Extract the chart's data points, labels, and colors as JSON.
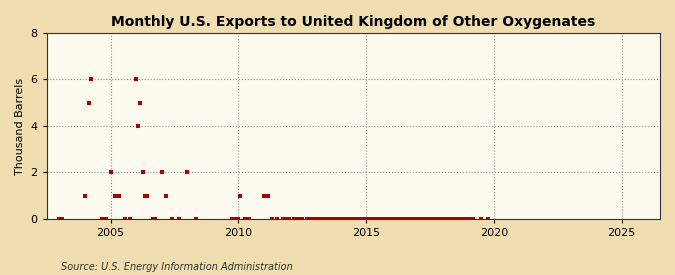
{
  "title": "Monthly U.S. Exports to United Kingdom of Other Oxygenates",
  "ylabel": "Thousand Barrels",
  "source": "Source: U.S. Energy Information Administration",
  "fig_bg_color": "#f0deb0",
  "plot_bg_color": "#fdfaf0",
  "marker_color": "#aa0000",
  "marker": "s",
  "marker_size": 7,
  "xlim_start": 2002.5,
  "xlim_end": 2026.5,
  "ylim": [
    0,
    8
  ],
  "yticks": [
    0,
    2,
    4,
    6,
    8
  ],
  "xticks": [
    2005,
    2010,
    2015,
    2020,
    2025
  ],
  "data_points": [
    [
      2003.0,
      0
    ],
    [
      2003.08,
      0
    ],
    [
      2004.0,
      1
    ],
    [
      2004.17,
      5
    ],
    [
      2004.25,
      6
    ],
    [
      2004.67,
      0
    ],
    [
      2004.83,
      0
    ],
    [
      2005.0,
      2
    ],
    [
      2005.17,
      1
    ],
    [
      2005.33,
      1
    ],
    [
      2005.58,
      0
    ],
    [
      2005.75,
      0
    ],
    [
      2006.0,
      6
    ],
    [
      2006.08,
      4
    ],
    [
      2006.17,
      5
    ],
    [
      2006.25,
      2
    ],
    [
      2006.33,
      1
    ],
    [
      2006.42,
      1
    ],
    [
      2006.67,
      0
    ],
    [
      2006.75,
      0
    ],
    [
      2007.0,
      2
    ],
    [
      2007.17,
      1
    ],
    [
      2007.42,
      0
    ],
    [
      2007.67,
      0
    ],
    [
      2008.0,
      2
    ],
    [
      2008.33,
      0
    ],
    [
      2009.75,
      0
    ],
    [
      2009.83,
      0
    ],
    [
      2010.0,
      0
    ],
    [
      2010.08,
      1
    ],
    [
      2010.25,
      0
    ],
    [
      2010.42,
      0
    ],
    [
      2011.0,
      1
    ],
    [
      2011.17,
      1
    ],
    [
      2011.33,
      0
    ],
    [
      2011.5,
      0
    ],
    [
      2011.75,
      0
    ],
    [
      2011.92,
      0
    ],
    [
      2012.0,
      0
    ],
    [
      2012.17,
      0
    ],
    [
      2012.33,
      0
    ],
    [
      2012.5,
      0
    ],
    [
      2012.67,
      0
    ],
    [
      2012.75,
      0
    ],
    [
      2012.83,
      0
    ],
    [
      2013.0,
      0
    ],
    [
      2013.08,
      0
    ],
    [
      2013.17,
      0
    ],
    [
      2013.25,
      0
    ],
    [
      2013.33,
      0
    ],
    [
      2013.42,
      0
    ],
    [
      2013.5,
      0
    ],
    [
      2013.58,
      0
    ],
    [
      2013.67,
      0
    ],
    [
      2013.75,
      0
    ],
    [
      2013.83,
      0
    ],
    [
      2013.92,
      0
    ],
    [
      2014.0,
      0
    ],
    [
      2014.08,
      0
    ],
    [
      2014.17,
      0
    ],
    [
      2014.25,
      0
    ],
    [
      2014.33,
      0
    ],
    [
      2014.42,
      0
    ],
    [
      2014.5,
      0
    ],
    [
      2014.58,
      0
    ],
    [
      2014.67,
      0
    ],
    [
      2014.75,
      0
    ],
    [
      2014.83,
      0
    ],
    [
      2014.92,
      0
    ],
    [
      2015.0,
      0
    ],
    [
      2015.08,
      0
    ],
    [
      2015.17,
      0
    ],
    [
      2015.25,
      0
    ],
    [
      2015.33,
      0
    ],
    [
      2015.42,
      0
    ],
    [
      2015.5,
      0
    ],
    [
      2015.58,
      0
    ],
    [
      2015.67,
      0
    ],
    [
      2015.75,
      0
    ],
    [
      2015.83,
      0
    ],
    [
      2015.92,
      0
    ],
    [
      2016.0,
      0
    ],
    [
      2016.08,
      0
    ],
    [
      2016.17,
      0
    ],
    [
      2016.25,
      0
    ],
    [
      2016.33,
      0
    ],
    [
      2016.42,
      0
    ],
    [
      2016.5,
      0
    ],
    [
      2016.58,
      0
    ],
    [
      2016.67,
      0
    ],
    [
      2016.75,
      0
    ],
    [
      2016.83,
      0
    ],
    [
      2016.92,
      0
    ],
    [
      2017.0,
      0
    ],
    [
      2017.08,
      0
    ],
    [
      2017.17,
      0
    ],
    [
      2017.25,
      0
    ],
    [
      2017.33,
      0
    ],
    [
      2017.42,
      0
    ],
    [
      2017.5,
      0
    ],
    [
      2017.58,
      0
    ],
    [
      2017.67,
      0
    ],
    [
      2017.75,
      0
    ],
    [
      2017.83,
      0
    ],
    [
      2017.92,
      0
    ],
    [
      2018.0,
      0
    ],
    [
      2018.08,
      0
    ],
    [
      2018.17,
      0
    ],
    [
      2018.25,
      0
    ],
    [
      2018.33,
      0
    ],
    [
      2018.42,
      0
    ],
    [
      2018.5,
      0
    ],
    [
      2018.58,
      0
    ],
    [
      2018.67,
      0
    ],
    [
      2018.75,
      0
    ],
    [
      2018.83,
      0
    ],
    [
      2018.92,
      0
    ],
    [
      2019.0,
      0
    ],
    [
      2019.08,
      0
    ],
    [
      2019.17,
      0
    ],
    [
      2019.5,
      0
    ],
    [
      2019.75,
      0
    ]
  ]
}
